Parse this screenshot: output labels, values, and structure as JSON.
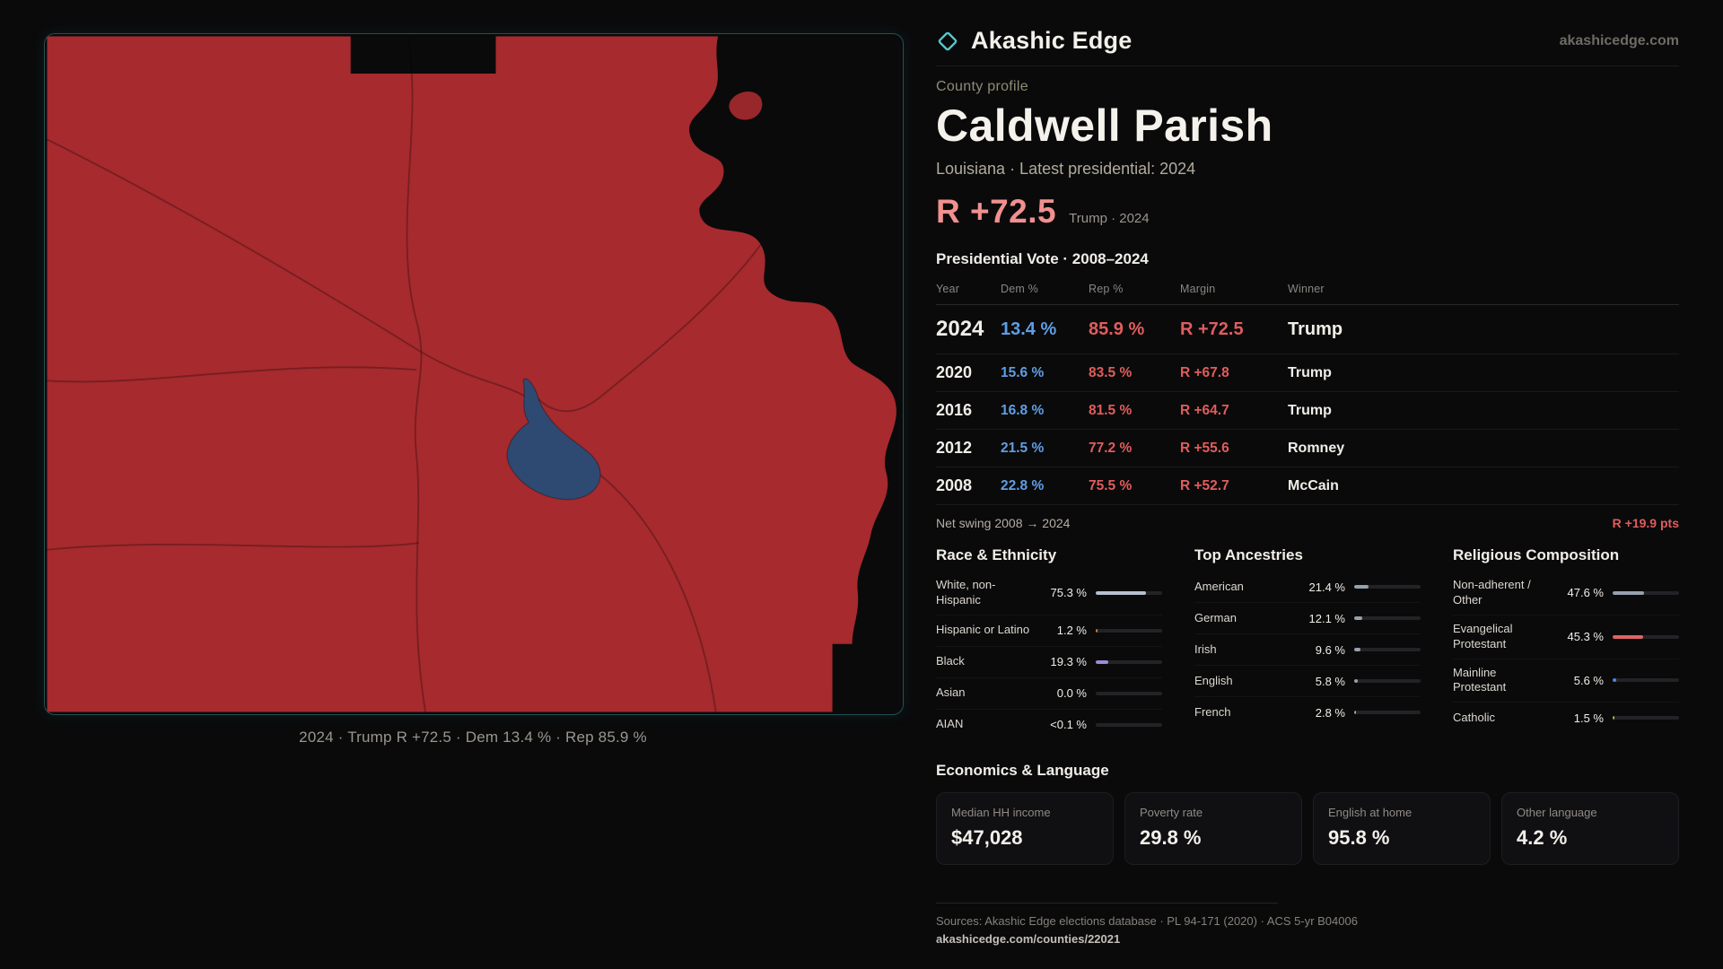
{
  "brand": {
    "name": "Akashic Edge",
    "domain": "akashicedge.com",
    "accent": "#58c7c9"
  },
  "map": {
    "caption": "2024 · Trump R +72.5 · Dem 13.4 % · Rep 85.9 %",
    "county_fill": "#a62a2e",
    "lake_fill": "#2e4a72"
  },
  "profile": {
    "kicker": "County profile",
    "title": "Caldwell Parish",
    "subtitle": "Louisiana · Latest presidential: 2024",
    "headline_margin": "R +72.5",
    "headline_note": "Trump · 2024",
    "margin_color": "#f28f8f"
  },
  "vote_table": {
    "title": "Presidential Vote · 2008–2024",
    "columns": [
      "Year",
      "Dem %",
      "Rep %",
      "Margin",
      "Winner"
    ],
    "dem_color": "#5f9ee4",
    "rep_color": "#e25c5c",
    "rows": [
      {
        "year": "2024",
        "dem": "13.4 %",
        "rep": "85.9 %",
        "margin": "R +72.5",
        "winner": "Trump"
      },
      {
        "year": "2020",
        "dem": "15.6 %",
        "rep": "83.5 %",
        "margin": "R +67.8",
        "winner": "Trump"
      },
      {
        "year": "2016",
        "dem": "16.8 %",
        "rep": "81.5 %",
        "margin": "R +64.7",
        "winner": "Trump"
      },
      {
        "year": "2012",
        "dem": "21.5 %",
        "rep": "77.2 %",
        "margin": "R +55.6",
        "winner": "Romney"
      },
      {
        "year": "2008",
        "dem": "22.8 %",
        "rep": "75.5 %",
        "margin": "R +52.7",
        "winner": "McCain"
      }
    ],
    "net_swing_label": "Net swing 2008 → 2024",
    "net_swing_value": "R +19.9 pts"
  },
  "demographics": {
    "race": {
      "title": "Race & Ethnicity",
      "rows": [
        {
          "label": "White, non-Hispanic",
          "value": "75.3 %",
          "pct": 75.3,
          "color": "#b7c0cf"
        },
        {
          "label": "Hispanic or Latino",
          "value": "1.2 %",
          "pct": 1.2,
          "color": "#c9823f"
        },
        {
          "label": "Black",
          "value": "19.3 %",
          "pct": 19.3,
          "color": "#9f8bd6"
        },
        {
          "label": "Asian",
          "value": "0.0 %",
          "pct": 0,
          "color": "#b7c0cf"
        },
        {
          "label": "AIAN",
          "value": "<0.1 %",
          "pct": 0,
          "color": "#b7c0cf"
        }
      ]
    },
    "ancestries": {
      "title": "Top Ancestries",
      "rows": [
        {
          "label": "American",
          "value": "21.4 %",
          "pct": 21.4,
          "color": "#97a1ad"
        },
        {
          "label": "German",
          "value": "12.1 %",
          "pct": 12.1,
          "color": "#97a1ad"
        },
        {
          "label": "Irish",
          "value": "9.6 %",
          "pct": 9.6,
          "color": "#97a1ad"
        },
        {
          "label": "English",
          "value": "5.8 %",
          "pct": 5.8,
          "color": "#97a1ad"
        },
        {
          "label": "French",
          "value": "2.8 %",
          "pct": 2.8,
          "color": "#97a1ad"
        }
      ]
    },
    "religion": {
      "title": "Religious Composition",
      "rows": [
        {
          "label": "Non-adherent / Other",
          "value": "47.6 %",
          "pct": 47.6,
          "color": "#97a1ad"
        },
        {
          "label": "Evangelical Protestant",
          "value": "45.3 %",
          "pct": 45.3,
          "color": "#e06363"
        },
        {
          "label": "Mainline Protestant",
          "value": "5.6 %",
          "pct": 5.6,
          "color": "#4f86e8"
        },
        {
          "label": "Catholic",
          "value": "1.5 %",
          "pct": 1.5,
          "color": "#b8a84a"
        }
      ]
    }
  },
  "economics": {
    "title": "Economics & Language",
    "stats": [
      {
        "label": "Median HH income",
        "value": "$47,028"
      },
      {
        "label": "Poverty rate",
        "value": "29.8 %"
      },
      {
        "label": "English at home",
        "value": "95.8 %"
      },
      {
        "label": "Other language",
        "value": "4.2 %"
      }
    ]
  },
  "footer": {
    "sources": "Sources: Akashic Edge elections database · PL 94-171 (2020) · ACS 5-yr B04006",
    "permalink": "akashicedge.com/counties/22021"
  }
}
